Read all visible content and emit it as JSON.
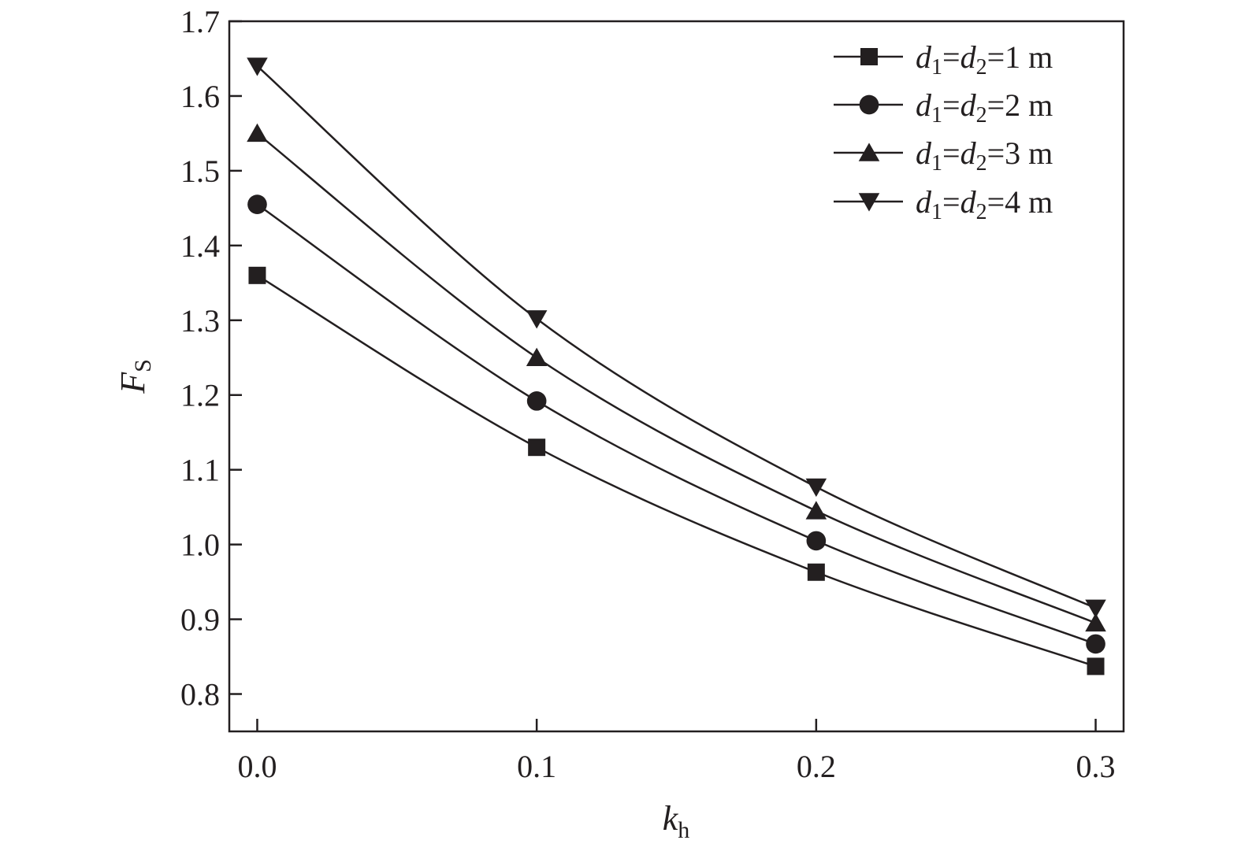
{
  "chart_data": {
    "type": "line",
    "title": "",
    "xlabel": {
      "main": "k",
      "sub": "h"
    },
    "ylabel": {
      "main": "F",
      "sub": "S"
    },
    "xlim": [
      -0.01,
      0.31
    ],
    "ylim": [
      0.75,
      1.7
    ],
    "xticks": [
      "0.0",
      "0.1",
      "0.2",
      "0.3"
    ],
    "yticks": [
      "0.8",
      "0.9",
      "1.0",
      "1.1",
      "1.2",
      "1.3",
      "1.4",
      "1.5",
      "1.6",
      "1.7"
    ],
    "x": [
      0.0,
      0.1,
      0.2,
      0.3
    ],
    "grid": false,
    "legend_position": "top-right",
    "line_color": "#231f20",
    "series": [
      {
        "name": "d1=d2=1 m",
        "label": {
          "num": "1 m"
        },
        "marker": "square",
        "values": [
          1.36,
          1.13,
          0.963,
          0.837
        ]
      },
      {
        "name": "d1=d2=2 m",
        "label": {
          "num": "2 m"
        },
        "marker": "circle",
        "values": [
          1.455,
          1.192,
          1.005,
          0.867
        ]
      },
      {
        "name": "d1=d2=3 m",
        "label": {
          "num": "3 m"
        },
        "marker": "triangle-up",
        "values": [
          1.55,
          1.25,
          1.045,
          0.895
        ]
      },
      {
        "name": "d1=d2=4 m",
        "label": {
          "num": "4 m"
        },
        "marker": "triangle-down",
        "values": [
          1.64,
          1.302,
          1.077,
          0.915
        ]
      }
    ]
  }
}
